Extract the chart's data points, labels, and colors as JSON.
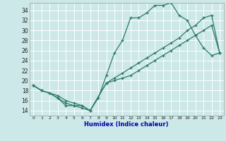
{
  "xlabel": "Humidex (Indice chaleur)",
  "bg_color": "#cce8e8",
  "line_color": "#2d7a6a",
  "xlim": [
    -0.5,
    23.5
  ],
  "ylim": [
    13,
    35.5
  ],
  "yticks": [
    14,
    16,
    18,
    20,
    22,
    24,
    26,
    28,
    30,
    32,
    34
  ],
  "xticks": [
    0,
    1,
    2,
    3,
    4,
    5,
    6,
    7,
    8,
    9,
    10,
    11,
    12,
    13,
    14,
    15,
    16,
    17,
    18,
    19,
    20,
    21,
    22,
    23
  ],
  "line1_x": [
    0,
    1,
    2,
    3,
    4,
    5,
    6,
    7,
    8,
    9,
    10,
    11,
    12,
    13,
    14,
    15,
    16,
    17,
    18,
    19,
    20,
    21,
    22,
    23
  ],
  "line1_y": [
    19,
    18,
    17.5,
    16.5,
    15,
    15,
    14.5,
    14,
    16.5,
    21,
    25.5,
    28,
    32.5,
    32.5,
    33.5,
    35,
    35,
    35.5,
    33,
    32,
    29,
    26.5,
    25,
    25.5
  ],
  "line2_x": [
    0,
    1,
    3,
    4,
    5,
    6,
    7,
    9,
    10,
    11,
    12,
    13,
    14,
    15,
    16,
    17,
    18,
    19,
    20,
    21,
    22,
    23
  ],
  "line2_y": [
    19,
    18,
    17,
    16,
    15.5,
    15,
    14,
    19.5,
    20.5,
    21.5,
    22.5,
    23.5,
    24.5,
    25.5,
    26.5,
    27.5,
    28.5,
    30,
    31,
    32.5,
    33,
    25.5
  ],
  "line3_x": [
    0,
    1,
    2,
    3,
    4,
    5,
    6,
    7,
    9,
    10,
    11,
    12,
    13,
    14,
    15,
    16,
    17,
    18,
    19,
    20,
    21,
    22,
    23
  ],
  "line3_y": [
    19,
    18,
    17.5,
    16.5,
    15.5,
    15,
    15,
    14,
    19.5,
    20,
    20.5,
    21,
    22,
    23,
    24,
    25,
    26,
    27,
    28,
    29,
    30,
    31,
    25.5
  ]
}
